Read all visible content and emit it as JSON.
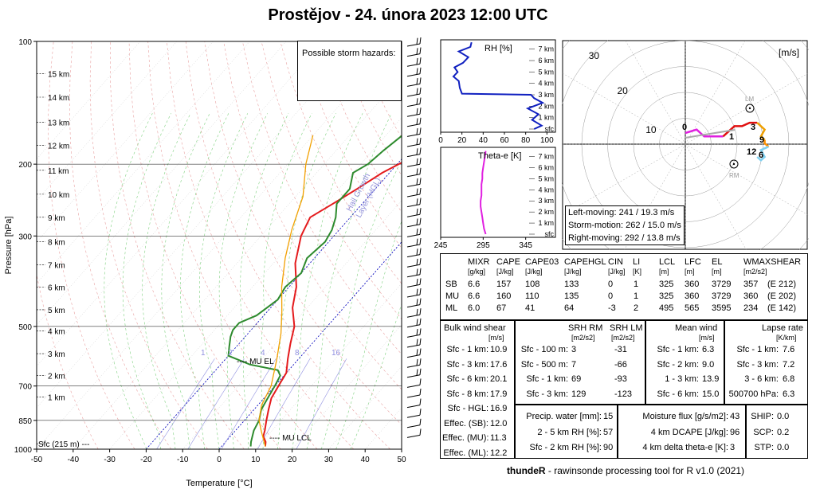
{
  "title": "Prostějov - 24. února 2023 12:00 UTC",
  "footer": {
    "brand": "thundeR",
    "text": " - rawinsonde processing tool for R v1.0 (2021)"
  },
  "skewt": {
    "ylabel": "Pressure [hPa]",
    "xlabel": "Temperature [°C]",
    "pressure_ticks": [
      "100",
      "200",
      "300",
      "500",
      "700",
      "850",
      "1000"
    ],
    "temp_ticks": [
      "-50",
      "-40",
      "-30",
      "-20",
      "-10",
      "0",
      "10",
      "20",
      "30",
      "40",
      "50"
    ],
    "height_labels": [
      "15 km",
      "14 km",
      "13 km",
      "12 km",
      "11 km",
      "10 km",
      "9 km",
      "8 km",
      "7 km",
      "6 km",
      "5 km",
      "4 km",
      "3 km",
      "2 km",
      "1 km",
      "Sfc (215 m) ---"
    ],
    "mixing_ratio_labels": [
      "1",
      "2",
      "4",
      "8",
      "16"
    ],
    "hazard_box_label": "Possible storm hazards:",
    "hgl_label_1": "Hail Growth",
    "hgl_label_2": "Layer (HGL)",
    "mu_el_label": "---- MU EL",
    "mu_lcl_label": "---- MU LCL",
    "colors": {
      "temperature": "#e41a1c",
      "dewpoint": "#2e8b2e",
      "parcel": "#f2a000",
      "dry_adiabat": "#e8a0a0",
      "moist_adiabat": "#7fd17f",
      "isotherm_zero": "#1010c0",
      "mixing_ratio": "#9090e0"
    }
  },
  "chart_data": [
    {
      "type": "line",
      "title": "Prostějov - 24. února 2023 12:00 UTC",
      "xlabel": "Temperature [°C]",
      "ylabel": "Pressure [hPa]",
      "xlim": [
        -50,
        50
      ],
      "ylim": [
        1000,
        100
      ],
      "yscale": "log",
      "series": [
        {
          "name": "temperature",
          "points": [
            [
              12,
              985
            ],
            [
              11,
              960
            ],
            [
              9,
              930
            ],
            [
              8,
              900
            ],
            [
              6,
              850
            ],
            [
              4,
              800
            ],
            [
              2,
              750
            ],
            [
              1,
              700
            ],
            [
              0,
              650
            ],
            [
              -3,
              600
            ],
            [
              -6,
              550
            ],
            [
              -9,
              500
            ],
            [
              -14,
              450
            ],
            [
              -18,
              400
            ],
            [
              -24,
              350
            ],
            [
              -29,
              300
            ],
            [
              -31,
              270
            ],
            [
              -28,
              250
            ],
            [
              -25,
              230
            ],
            [
              -22,
              210
            ],
            [
              -17,
              190
            ],
            [
              -14,
              175
            ],
            [
              -12,
              160
            ],
            [
              -10,
              150
            ],
            [
              -6,
              130
            ],
            [
              -3,
              115
            ],
            [
              1,
              100
            ]
          ]
        },
        {
          "name": "dewpoint",
          "points": [
            [
              8,
              985
            ],
            [
              7,
              960
            ],
            [
              6,
              930
            ],
            [
              5,
              900
            ],
            [
              4,
              850
            ],
            [
              2,
              800
            ],
            [
              1,
              750
            ],
            [
              0,
              700
            ],
            [
              -1,
              660
            ],
            [
              -3,
              640
            ],
            [
              -12,
              620
            ],
            [
              -20,
              590
            ],
            [
              -22,
              560
            ],
            [
              -24,
              530
            ],
            [
              -25,
              510
            ],
            [
              -25,
              490
            ],
            [
              -22,
              470
            ],
            [
              -20,
              430
            ],
            [
              -21,
              400
            ],
            [
              -20,
              370
            ],
            [
              -22,
              340
            ],
            [
              -21,
              310
            ],
            [
              -22,
              290
            ],
            [
              -24,
              270
            ],
            [
              -27,
              250
            ],
            [
              -27,
              230
            ],
            [
              -30,
              210
            ],
            [
              -28,
              200
            ],
            [
              -27,
              185
            ],
            [
              -25,
              165
            ],
            [
              -24,
              150
            ],
            [
              -22,
              135
            ],
            [
              -20,
              118
            ],
            [
              -19,
              105
            ],
            [
              -17,
              100
            ]
          ]
        },
        {
          "name": "parcel",
          "points": [
            [
              12,
              985
            ],
            [
              10,
              950
            ],
            [
              7,
              900
            ],
            [
              4,
              850
            ],
            [
              1,
              780
            ],
            [
              -1,
              700
            ],
            [
              -6,
              600
            ],
            [
              -11,
              520
            ],
            [
              -16,
              460
            ],
            [
              -22,
              400
            ],
            [
              -28,
              340
            ],
            [
              -33,
              290
            ],
            [
              -38,
              240
            ],
            [
              -45,
              200
            ],
            [
              -50,
              170
            ]
          ]
        }
      ]
    },
    {
      "type": "line",
      "title": "RH [%]",
      "xlim": [
        0,
        100
      ],
      "x_ticks": [
        "0",
        "20",
        "40",
        "60",
        "80",
        "100"
      ],
      "y_labels": [
        "7 km",
        "6 km",
        "5 km",
        "4 km",
        "3 km",
        "2 km",
        "1 km",
        "sfc"
      ],
      "series": [
        {
          "name": "RH",
          "points": [
            [
              88,
              0
            ],
            [
              95,
              0.3
            ],
            [
              86,
              0.8
            ],
            [
              92,
              1.3
            ],
            [
              82,
              1.8
            ],
            [
              96,
              2.3
            ],
            [
              88,
              2.7
            ],
            [
              85,
              3.0
            ],
            [
              20,
              3.1
            ],
            [
              18,
              3.6
            ],
            [
              17,
              4.2
            ],
            [
              12,
              4.6
            ],
            [
              16,
              5.0
            ],
            [
              13,
              5.4
            ],
            [
              21,
              5.8
            ],
            [
              26,
              6.3
            ],
            [
              17,
              6.8
            ],
            [
              28,
              7.2
            ],
            [
              29,
              7.6
            ]
          ]
        }
      ]
    },
    {
      "type": "line",
      "title": "Theta-e [K]",
      "xlim": [
        245,
        380
      ],
      "x_ticks": [
        "245",
        "295",
        "345"
      ],
      "y_labels": [
        "7 km",
        "6 km",
        "5 km",
        "4 km",
        "3 km",
        "2 km",
        "1 km",
        "sfc"
      ],
      "series": [
        {
          "name": "Theta-e",
          "points": [
            [
              298,
              0
            ],
            [
              296,
              0.5
            ],
            [
              295,
              1.0
            ],
            [
              294,
              1.5
            ],
            [
              293,
              2.0
            ],
            [
              292,
              2.5
            ],
            [
              292,
              3.0
            ],
            [
              293,
              3.5
            ],
            [
              293,
              4.0
            ],
            [
              293,
              4.5
            ],
            [
              294,
              5.0
            ],
            [
              294,
              5.5
            ],
            [
              295,
              6.0
            ],
            [
              296,
              6.5
            ],
            [
              297,
              7.0
            ],
            [
              298,
              7.5
            ]
          ]
        }
      ]
    },
    {
      "type": "scatter",
      "title": "Hodograph [m/s]",
      "rings": [
        "10",
        "20",
        "30"
      ],
      "unit_label": "[m/s]",
      "series": [
        {
          "name": "0-1 km",
          "color": "#e020e0",
          "points": [
            [
              0,
              0
            ],
            [
              -3,
              1
            ],
            [
              -5,
              -1
            ],
            [
              -7,
              -1
            ],
            [
              -10,
              -1
            ]
          ]
        },
        {
          "name": "1-3 km",
          "color": "#e01010",
          "points": [
            [
              -10,
              -1
            ],
            [
              -12,
              1
            ],
            [
              -13,
              2
            ],
            [
              -15,
              2
            ],
            [
              -17,
              3
            ],
            [
              -19,
              3
            ]
          ]
        },
        {
          "name": "3-6 km",
          "color": "#f0a000",
          "points": [
            [
              -19,
              3
            ],
            [
              -20,
              2
            ],
            [
              -21,
              1
            ],
            [
              -20,
              -1
            ],
            [
              -21,
              -2
            ]
          ]
        },
        {
          "name": "6-9 km",
          "color": "#ff9000",
          "points": [
            [
              -21,
              -2
            ],
            [
              -21,
              -3
            ],
            [
              -22,
              -4
            ]
          ]
        },
        {
          "name": "9-12 km",
          "color": "#80d0f0",
          "points": [
            [
              -22,
              -4
            ],
            [
              -20,
              -5
            ],
            [
              -21,
              -7
            ],
            [
              -20,
              -8
            ],
            [
              -19,
              -7
            ]
          ]
        }
      ],
      "labels": [
        "0",
        "1",
        "3",
        "9",
        "12",
        "6"
      ],
      "LM_label": "LM",
      "RM_label": "RM"
    }
  ],
  "hodo_stats": {
    "left": "Left-moving: 241 / 19.3 m/s",
    "storm": "Storm-motion: 262 / 15.0 m/s",
    "right": "Right-moving: 292 / 13.8 m/s"
  },
  "params_table": {
    "headers": [
      [
        "MIXR",
        "[g/kg]"
      ],
      [
        "CAPE",
        "[J/kg]"
      ],
      [
        "CAPE03",
        "[J/kg]"
      ],
      [
        "CAPEHGL",
        "[J/kg]"
      ],
      [
        "CIN",
        "[J/kg]"
      ],
      [
        "LI",
        "[K]"
      ],
      [
        "LCL",
        "[m]"
      ],
      [
        "LFC",
        "[m]"
      ],
      [
        "EL",
        "[m]"
      ],
      [
        "WMAXSHEAR",
        "[m2/s2]"
      ]
    ],
    "rows": [
      {
        "label": "SB",
        "values": [
          "6.6",
          "157",
          "108",
          "133",
          "0",
          "1",
          "325",
          "360",
          "3729",
          "357",
          "(E 212)"
        ]
      },
      {
        "label": "MU",
        "values": [
          "6.6",
          "160",
          "110",
          "135",
          "0",
          "1",
          "325",
          "360",
          "3729",
          "360",
          "(E 202)"
        ]
      },
      {
        "label": "ML",
        "values": [
          "6.0",
          "67",
          "41",
          "64",
          "-3",
          "2",
          "495",
          "565",
          "3595",
          "234",
          "(E 142)"
        ]
      }
    ]
  },
  "bulk_shear": {
    "title": "Bulk wind shear",
    "unit": "[m/s]",
    "rows": [
      [
        "Sfc - 1 km:",
        "10.9"
      ],
      [
        "Sfc - 3 km:",
        "17.6"
      ],
      [
        "Sfc - 6 km:",
        "20.1"
      ],
      [
        "Sfc - 8 km:",
        "17.9"
      ],
      [
        "Sfc - HGL:",
        "16.9"
      ],
      [
        "Effec. (SB):",
        "12.0"
      ],
      [
        "Effec. (MU):",
        "11.3"
      ],
      [
        "Effec. (ML):",
        "12.2"
      ]
    ]
  },
  "srh": {
    "h1": "SRH RM",
    "u1": "[m2/s2]",
    "h2": "SRH LM",
    "u2": "[m2/s2]",
    "rows": [
      [
        "Sfc - 100 m:",
        "3",
        "-31"
      ],
      [
        "Sfc - 500 m:",
        "7",
        "-66"
      ],
      [
        "Sfc - 1 km:",
        "69",
        "-93"
      ],
      [
        "Sfc - 3 km:",
        "129",
        "-123"
      ]
    ]
  },
  "mean_wind": {
    "title": "Mean wind",
    "unit": "[m/s]",
    "rows": [
      [
        "Sfc - 1 km:",
        "6.3"
      ],
      [
        "Sfc - 2 km:",
        "9.0"
      ],
      [
        "1 - 3 km:",
        "13.9"
      ],
      [
        "Sfc - 6 km:",
        "15.0"
      ]
    ]
  },
  "lapse": {
    "title": "Lapse rate",
    "unit": "[K/km]",
    "rows": [
      [
        "Sfc - 1 km:",
        "7.6"
      ],
      [
        "Sfc - 3 km:",
        "7.2"
      ],
      [
        "3 - 6 km:",
        "6.8"
      ],
      [
        "500700 hPa:",
        "6.3"
      ]
    ]
  },
  "moisture": {
    "rows": [
      [
        "Precip. water [mm]:",
        "15"
      ],
      [
        "2 - 5 km RH [%]:",
        "57"
      ],
      [
        "Sfc - 2 km RH [%]:",
        "90"
      ]
    ]
  },
  "flux": {
    "rows": [
      [
        "Moisture flux [g/s/m2]:",
        "43"
      ],
      [
        "4 km DCAPE [J/kg]:",
        "96"
      ],
      [
        "4 km delta theta-e [K]:",
        "3"
      ]
    ]
  },
  "composites": {
    "rows": [
      [
        "SHIP:",
        "0.0"
      ],
      [
        "SCP:",
        "0.2"
      ],
      [
        "STP:",
        "0.0"
      ]
    ]
  }
}
